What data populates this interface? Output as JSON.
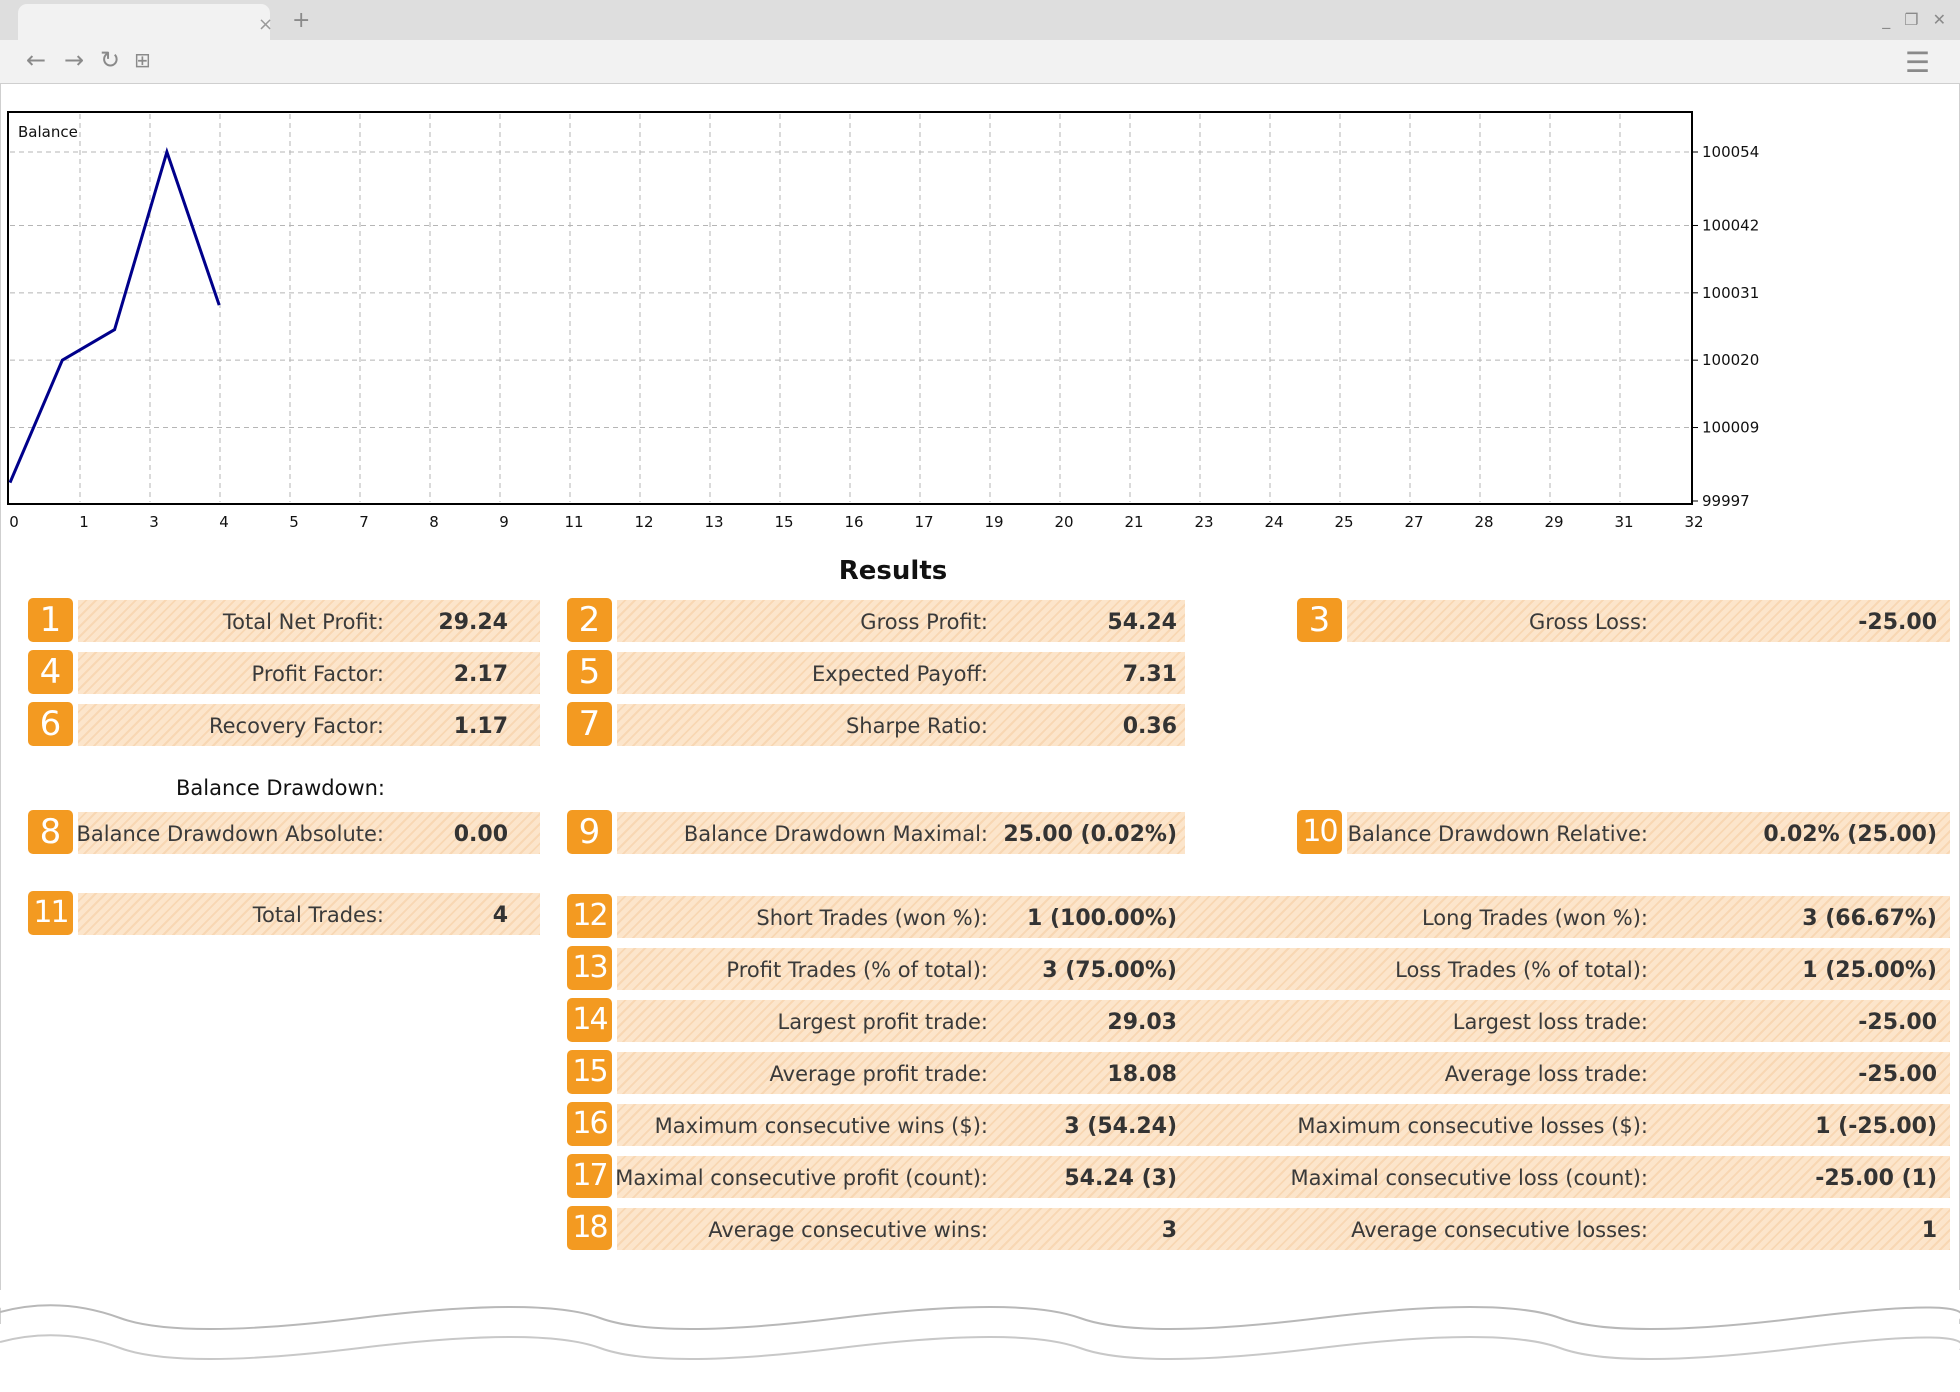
{
  "browser": {
    "tab_close_icon": "×",
    "new_tab_icon": "+",
    "window_controls": [
      "_",
      "❐",
      "✕"
    ],
    "nav": {
      "back_icon": "←",
      "forward_icon": "→",
      "reload_icon": "↻",
      "apps_icon": "⊞",
      "menu_icon": "☰"
    }
  },
  "chart_data": {
    "type": "line",
    "title": "Balance",
    "x_ticks": [
      0,
      1,
      3,
      4,
      5,
      7,
      8,
      9,
      11,
      12,
      13,
      15,
      16,
      17,
      19,
      20,
      21,
      23,
      24,
      25,
      27,
      28,
      29,
      31,
      32
    ],
    "y_ticks": [
      99997,
      100009,
      100020,
      100031,
      100042,
      100054
    ],
    "ylim": [
      99997,
      100054
    ],
    "xlim": [
      0,
      32
    ],
    "grid": true,
    "line_color": "#00008b",
    "series": [
      {
        "x": [
          0,
          1,
          2,
          3,
          4
        ],
        "y": [
          100000,
          100020,
          100025,
          100054,
          100029
        ]
      }
    ]
  },
  "results": {
    "title": "Results",
    "drawdown_heading": "Balance Drawdown:",
    "rows": [
      {
        "n": "1",
        "label": "Total Net Profit:",
        "value": "29.24"
      },
      {
        "n": "2",
        "label": "Gross Profit:",
        "value": "54.24"
      },
      {
        "n": "3",
        "label": "Gross Loss:",
        "value": "-25.00"
      },
      {
        "n": "4",
        "label": "Profit Factor:",
        "value": "2.17"
      },
      {
        "n": "5",
        "label": "Expected Payoff:",
        "value": "7.31"
      },
      {
        "n": "6",
        "label": "Recovery Factor:",
        "value": "1.17"
      },
      {
        "n": "7",
        "label": "Sharpe Ratio:",
        "value": "0.36"
      },
      {
        "n": "8",
        "label": "Balance Drawdown Absolute:",
        "value": "0.00"
      },
      {
        "n": "9",
        "label": "Balance Drawdown Maximal:",
        "value": "25.00 (0.02%)"
      },
      {
        "n": "10",
        "label": "Balance Drawdown Relative:",
        "value": "0.02% (25.00)"
      },
      {
        "n": "11",
        "label": "Total Trades:",
        "value": "4"
      },
      {
        "n": "12",
        "label": "Short Trades (won %):",
        "value": "1 (100.00%)",
        "label2": "Long Trades (won %):",
        "value2": "3 (66.67%)"
      },
      {
        "n": "13",
        "label": "Profit Trades (% of total):",
        "value": "3 (75.00%)",
        "label2": "Loss Trades (% of total):",
        "value2": "1 (25.00%)"
      },
      {
        "n": "14",
        "label": "Largest profit trade:",
        "value": "29.03",
        "label2": "Largest loss trade:",
        "value2": "-25.00"
      },
      {
        "n": "15",
        "label": "Average profit trade:",
        "value": "18.08",
        "label2": "Average loss trade:",
        "value2": "-25.00"
      },
      {
        "n": "16",
        "label": "Maximum consecutive wins ($):",
        "value": "3 (54.24)",
        "label2": "Maximum consecutive losses ($):",
        "value2": "1 (-25.00)"
      },
      {
        "n": "17",
        "label": "Maximal consecutive profit (count):",
        "value": "54.24 (3)",
        "label2": "Maximal consecutive loss (count):",
        "value2": "-25.00 (1)"
      },
      {
        "n": "18",
        "label": "Average consecutive wins:",
        "value": "3",
        "label2": "Average consecutive losses:",
        "value2": "1"
      }
    ]
  }
}
